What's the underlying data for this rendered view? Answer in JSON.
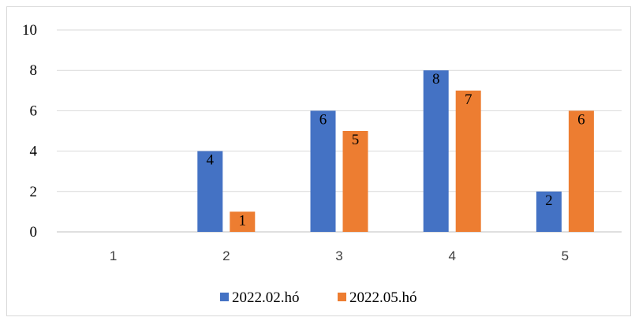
{
  "chart_data": {
    "type": "bar",
    "categories": [
      "1",
      "2",
      "3",
      "4",
      "5"
    ],
    "series": [
      {
        "name": "2022.02.hó",
        "values": [
          0,
          4,
          6,
          8,
          2
        ],
        "labels": [
          "",
          "4",
          "6",
          "8",
          "2"
        ],
        "color": "#4472c4"
      },
      {
        "name": "2022.05.hó",
        "values": [
          0,
          1,
          5,
          7,
          6
        ],
        "labels": [
          "",
          "1",
          "5",
          "7",
          "6"
        ],
        "color": "#ed7d31"
      }
    ],
    "ylim": [
      0,
      10
    ],
    "yticks": [
      "0",
      "2",
      "4",
      "6",
      "8",
      "10"
    ],
    "grid": true,
    "legend_position": "bottom"
  }
}
